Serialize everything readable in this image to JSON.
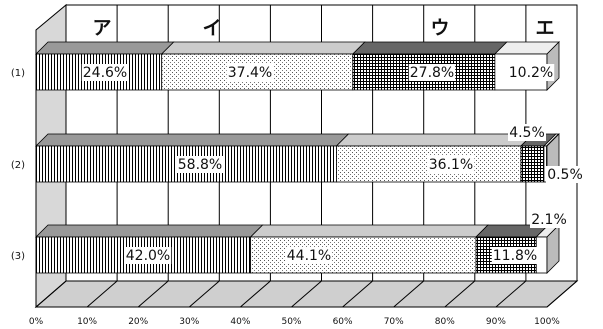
{
  "chart_data": {
    "type": "bar",
    "orientation": "horizontal-stacked-100-percent",
    "categories_header": [
      "ア",
      "イ",
      "ウ",
      "エ"
    ],
    "rows": [
      {
        "label": "(1)",
        "values": [
          24.6,
          37.4,
          27.8,
          10.2
        ],
        "labels": [
          "24.6%",
          "37.4%",
          "27.8%",
          "10.2%"
        ]
      },
      {
        "label": "(2)",
        "values": [
          58.8,
          36.1,
          4.5,
          0.5
        ],
        "labels": [
          "58.8%",
          "36.1%",
          "4.5%",
          "0.5%"
        ]
      },
      {
        "label": "(3)",
        "values": [
          42.0,
          44.1,
          11.8,
          2.1
        ],
        "labels": [
          "42.0%",
          "44.1%",
          "11.8%",
          "2.1%"
        ]
      }
    ],
    "x_ticks": [
      "0%",
      "10%",
      "20%",
      "30%",
      "40%",
      "50%",
      "60%",
      "70%",
      "80%",
      "90%",
      "100%"
    ],
    "xlim": [
      0,
      100
    ],
    "grid": true,
    "legend": "none (category letters shown across the top)",
    "pattern_colors": {
      "vertical_stripes": "#000000",
      "dots": "#555555",
      "grid": "#000000",
      "blank": "#ffffff",
      "wall": "#d4d4d4",
      "floor": "#cfcfcf"
    }
  }
}
